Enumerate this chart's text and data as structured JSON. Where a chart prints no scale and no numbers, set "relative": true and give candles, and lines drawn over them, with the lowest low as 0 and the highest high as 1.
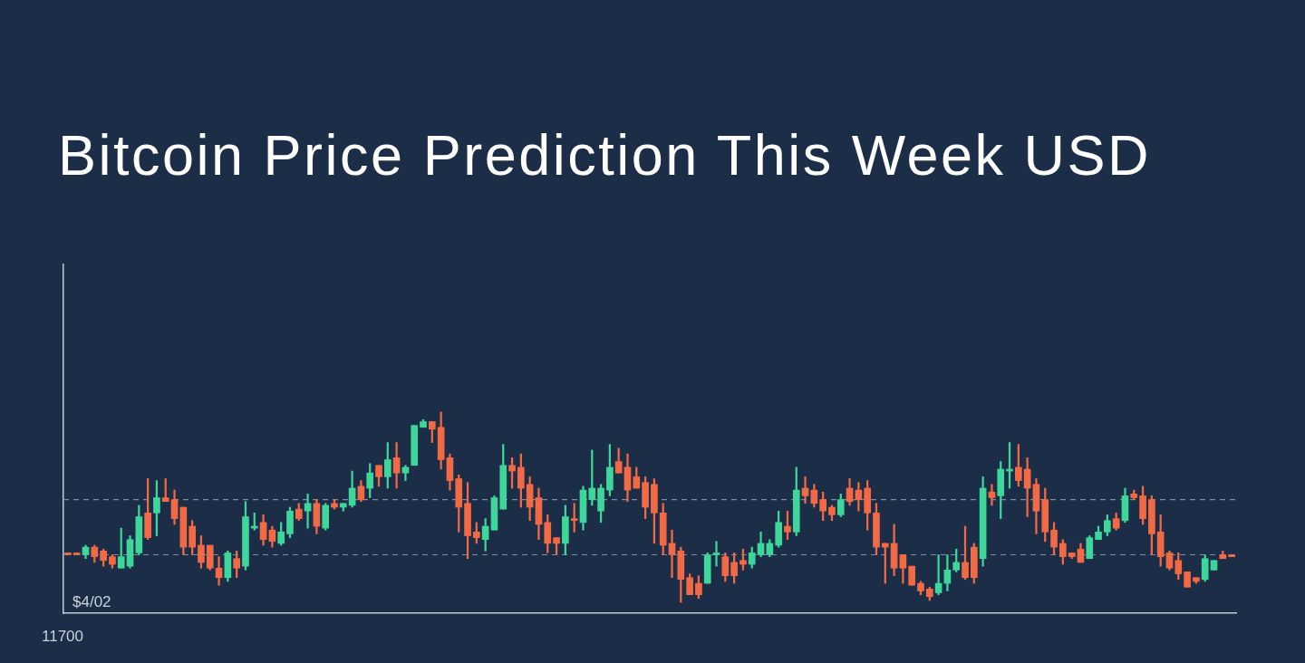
{
  "chart_data": {
    "type": "candlestick",
    "title": "Bitcoin Price Prediction This Week USD",
    "relative": true,
    "tick_labels": false,
    "categories": [
      null,
      null,
      null,
      null,
      null,
      null,
      null,
      null,
      null,
      null,
      null,
      null,
      null,
      null,
      null,
      null,
      null,
      null,
      null,
      null,
      null,
      null,
      null,
      null,
      null,
      null,
      null,
      null,
      null,
      null,
      null,
      null,
      null,
      null,
      null,
      null,
      null,
      null,
      null,
      null,
      null,
      null,
      null,
      null,
      null,
      null,
      null,
      null,
      null,
      null,
      null,
      null,
      null,
      null,
      null,
      null,
      null,
      null,
      null,
      null,
      null,
      null,
      null,
      null,
      null,
      null,
      null,
      null,
      null,
      null,
      null,
      null,
      null,
      null,
      null,
      null,
      null,
      null,
      null,
      null,
      null,
      null,
      null,
      null,
      null,
      null,
      null,
      null,
      null,
      null,
      null,
      null,
      null,
      null,
      null,
      null,
      null,
      null,
      null,
      null,
      null,
      null,
      null,
      null,
      null,
      null,
      null,
      null,
      null,
      null,
      null,
      null,
      null,
      null,
      null,
      null,
      null,
      null,
      null,
      null,
      null,
      null,
      null,
      null,
      null,
      null,
      null,
      null,
      null,
      null,
      null,
      null
    ],
    "ohlc": [
      [
        0.26,
        0.26,
        0.25,
        0.25
      ],
      [
        0.26,
        0.26,
        0.25,
        0.25
      ],
      [
        0.25,
        0.3,
        0.23,
        0.29
      ],
      [
        0.29,
        0.3,
        0.21,
        0.24
      ],
      [
        0.27,
        0.28,
        0.19,
        0.22
      ],
      [
        0.24,
        0.25,
        0.18,
        0.2
      ],
      [
        0.18,
        0.39,
        0.18,
        0.24
      ],
      [
        0.19,
        0.35,
        0.18,
        0.33
      ],
      [
        0.26,
        0.51,
        0.25,
        0.45
      ],
      [
        0.47,
        0.65,
        0.33,
        0.34
      ],
      [
        0.47,
        0.64,
        0.35,
        0.55
      ],
      [
        0.55,
        0.65,
        0.53,
        0.53
      ],
      [
        0.54,
        0.59,
        0.41,
        0.44
      ],
      [
        0.5,
        0.5,
        0.25,
        0.29
      ],
      [
        0.4,
        0.43,
        0.25,
        0.29
      ],
      [
        0.3,
        0.35,
        0.18,
        0.21
      ],
      [
        0.3,
        0.3,
        0.17,
        0.18
      ],
      [
        0.18,
        0.24,
        0.09,
        0.13
      ],
      [
        0.13,
        0.27,
        0.11,
        0.26
      ],
      [
        0.23,
        0.27,
        0.13,
        0.18
      ],
      [
        0.19,
        0.53,
        0.17,
        0.45
      ],
      [
        0.39,
        0.47,
        0.38,
        0.4
      ],
      [
        0.42,
        0.46,
        0.3,
        0.33
      ],
      [
        0.38,
        0.4,
        0.29,
        0.32
      ],
      [
        0.31,
        0.42,
        0.3,
        0.37
      ],
      [
        0.36,
        0.5,
        0.34,
        0.48
      ],
      [
        0.49,
        0.52,
        0.43,
        0.44
      ],
      [
        0.48,
        0.57,
        0.39,
        0.52
      ],
      [
        0.52,
        0.54,
        0.36,
        0.4
      ],
      [
        0.39,
        0.52,
        0.38,
        0.51
      ],
      [
        0.52,
        0.54,
        0.49,
        0.5
      ],
      [
        0.5,
        0.52,
        0.48,
        0.52
      ],
      [
        0.51,
        0.69,
        0.5,
        0.6
      ],
      [
        0.61,
        0.64,
        0.53,
        0.54
      ],
      [
        0.6,
        0.73,
        0.55,
        0.68
      ],
      [
        0.72,
        0.72,
        0.61,
        0.66
      ],
      [
        0.66,
        0.84,
        0.6,
        0.75
      ],
      [
        0.76,
        0.84,
        0.6,
        0.68
      ],
      [
        0.68,
        0.72,
        0.64,
        0.71
      ],
      [
        0.72,
        0.93,
        0.72,
        0.93
      ],
      [
        0.92,
        0.96,
        0.92,
        0.95
      ],
      [
        0.95,
        0.95,
        0.84,
        0.91
      ],
      [
        0.92,
        1,
        0.7,
        0.75
      ],
      [
        0.76,
        0.78,
        0.59,
        0.64
      ],
      [
        0.65,
        0.67,
        0.37,
        0.5
      ],
      [
        0.52,
        0.63,
        0.23,
        0.35
      ],
      [
        0.37,
        0.42,
        0.31,
        0.34
      ],
      [
        0.33,
        0.44,
        0.27,
        0.4
      ],
      [
        0.38,
        0.56,
        0.38,
        0.55
      ],
      [
        0.49,
        0.83,
        0.49,
        0.72
      ],
      [
        0.72,
        0.76,
        0.6,
        0.69
      ],
      [
        0.71,
        0.78,
        0.5,
        0.6
      ],
      [
        0.62,
        0.66,
        0.43,
        0.5
      ],
      [
        0.55,
        0.6,
        0.33,
        0.41
      ],
      [
        0.42,
        0.46,
        0.26,
        0.31
      ],
      [
        0.34,
        0.34,
        0.25,
        0.31
      ],
      [
        0.31,
        0.51,
        0.25,
        0.45
      ],
      [
        0.44,
        0.52,
        0.37,
        0.43
      ],
      [
        0.42,
        0.61,
        0.38,
        0.59
      ],
      [
        0.54,
        0.8,
        0.51,
        0.6
      ],
      [
        0.48,
        0.62,
        0.42,
        0.6
      ],
      [
        0.59,
        0.83,
        0.56,
        0.71
      ],
      [
        0.74,
        0.81,
        0.68,
        0.68
      ],
      [
        0.71,
        0.78,
        0.53,
        0.59
      ],
      [
        0.66,
        0.71,
        0.6,
        0.6
      ],
      [
        0.63,
        0.66,
        0.44,
        0.5
      ],
      [
        0.62,
        0.65,
        0.31,
        0.47
      ],
      [
        0.47,
        0.52,
        0.25,
        0.3
      ],
      [
        0.31,
        0.38,
        0.13,
        0.25
      ],
      [
        0.27,
        0.29,
        0,
        0.12
      ],
      [
        0.13,
        0.15,
        0.04,
        0.04
      ],
      [
        0.1,
        0.14,
        0.02,
        0.04
      ],
      [
        0.1,
        0.26,
        0.1,
        0.25
      ],
      [
        0.25,
        0.32,
        0.19,
        0.26
      ],
      [
        0.24,
        0.26,
        0.11,
        0.14
      ],
      [
        0.21,
        0.26,
        0.1,
        0.14
      ],
      [
        0.22,
        0.28,
        0.17,
        0.2
      ],
      [
        0.2,
        0.29,
        0.18,
        0.26
      ],
      [
        0.25,
        0.37,
        0.24,
        0.31
      ],
      [
        0.25,
        0.33,
        0.24,
        0.31
      ],
      [
        0.3,
        0.48,
        0.29,
        0.42
      ],
      [
        0.4,
        0.48,
        0.33,
        0.37
      ],
      [
        0.37,
        0.71,
        0.35,
        0.59
      ],
      [
        0.6,
        0.66,
        0.52,
        0.56
      ],
      [
        0.59,
        0.62,
        0.5,
        0.52
      ],
      [
        0.54,
        0.58,
        0.43,
        0.48
      ],
      [
        0.5,
        0.51,
        0.43,
        0.46
      ],
      [
        0.46,
        0.57,
        0.45,
        0.54
      ],
      [
        0.6,
        0.65,
        0.51,
        0.53
      ],
      [
        0.59,
        0.63,
        0.48,
        0.54
      ],
      [
        0.6,
        0.64,
        0.38,
        0.47
      ],
      [
        0.47,
        0.52,
        0.25,
        0.29
      ],
      [
        0.31,
        0.31,
        0.1,
        0.29
      ],
      [
        0.31,
        0.41,
        0.14,
        0.18
      ],
      [
        0.25,
        0.25,
        0.1,
        0.18
      ],
      [
        0.19,
        0.19,
        0.09,
        0.09
      ],
      [
        0.1,
        0.11,
        0.04,
        0.06
      ],
      [
        0.07,
        0.08,
        0.01,
        0.03
      ],
      [
        0.05,
        0.25,
        0.04,
        0.1
      ],
      [
        0.1,
        0.25,
        0.06,
        0.17
      ],
      [
        0.17,
        0.28,
        0.16,
        0.21
      ],
      [
        0.21,
        0.4,
        0.12,
        0.13
      ],
      [
        0.29,
        0.31,
        0.1,
        0.13
      ],
      [
        0.23,
        0.66,
        0.19,
        0.6
      ],
      [
        0.58,
        0.62,
        0.51,
        0.55
      ],
      [
        0.56,
        0.74,
        0.44,
        0.7
      ],
      [
        0.69,
        0.84,
        0.6,
        0.7
      ],
      [
        0.71,
        0.83,
        0.61,
        0.64
      ],
      [
        0.7,
        0.76,
        0.45,
        0.6
      ],
      [
        0.62,
        0.65,
        0.36,
        0.48
      ],
      [
        0.54,
        0.6,
        0.32,
        0.37
      ],
      [
        0.38,
        0.42,
        0.25,
        0.29
      ],
      [
        0.31,
        0.33,
        0.2,
        0.24
      ],
      [
        0.26,
        0.26,
        0.23,
        0.24
      ],
      [
        0.28,
        0.31,
        0.21,
        0.21
      ],
      [
        0.23,
        0.35,
        0.23,
        0.34
      ],
      [
        0.33,
        0.4,
        0.33,
        0.37
      ],
      [
        0.37,
        0.46,
        0.35,
        0.43
      ],
      [
        0.44,
        0.47,
        0.38,
        0.39
      ],
      [
        0.43,
        0.6,
        0.42,
        0.56
      ],
      [
        0.57,
        0.59,
        0.54,
        0.55
      ],
      [
        0.56,
        0.61,
        0.41,
        0.44
      ],
      [
        0.54,
        0.56,
        0.25,
        0.36
      ],
      [
        0.37,
        0.46,
        0.19,
        0.24
      ],
      [
        0.26,
        0.27,
        0.17,
        0.18
      ],
      [
        0.22,
        0.26,
        0.12,
        0.15
      ],
      [
        0.16,
        0.16,
        0.08,
        0.08
      ],
      [
        0.13,
        0.13,
        0.1,
        0.11
      ],
      [
        0.12,
        0.25,
        0.11,
        0.23
      ],
      [
        0.17,
        0.22,
        0.17,
        0.22
      ],
      [
        0.25,
        0.27,
        0.23,
        0.23
      ],
      [
        0.25,
        0.25,
        0.24,
        0.24
      ]
    ],
    "colors": [
      "#f26a45",
      "#f26a45",
      "#3ed69b",
      "#f26a45",
      "#f26a45",
      "#f26a45",
      "#3ed69b",
      "#3ed69b",
      "#3ed69b",
      "#f26a45",
      "#3ed69b",
      "#f26a45",
      "#f26a45",
      "#f26a45",
      "#f26a45",
      "#f26a45",
      "#f26a45",
      "#f26a45",
      "#3ed69b",
      "#f26a45",
      "#3ed69b",
      "#3ed69b",
      "#f26a45",
      "#f26a45",
      "#3ed69b",
      "#3ed69b",
      "#f26a45",
      "#3ed69b",
      "#f26a45",
      "#3ed69b",
      "#f26a45",
      "#3ed69b",
      "#3ed69b",
      "#f26a45",
      "#3ed69b",
      "#f26a45",
      "#3ed69b",
      "#f26a45",
      "#3ed69b",
      "#3ed69b",
      "#3ed69b",
      "#f26a45",
      "#f26a45",
      "#f26a45",
      "#f26a45",
      "#f26a45",
      "#f26a45",
      "#3ed69b",
      "#3ed69b",
      "#3ed69b",
      "#f26a45",
      "#f26a45",
      "#f26a45",
      "#f26a45",
      "#f26a45",
      "#f26a45",
      "#3ed69b",
      "#f26a45",
      "#3ed69b",
      "#3ed69b",
      "#3ed69b",
      "#3ed69b",
      "#f26a45",
      "#f26a45",
      "#f26a45",
      "#f26a45",
      "#f26a45",
      "#f26a45",
      "#f26a45",
      "#f26a45",
      "#f26a45",
      "#f26a45",
      "#3ed69b",
      "#3ed69b",
      "#f26a45",
      "#f26a45",
      "#f26a45",
      "#3ed69b",
      "#3ed69b",
      "#3ed69b",
      "#3ed69b",
      "#f26a45",
      "#3ed69b",
      "#f26a45",
      "#f26a45",
      "#f26a45",
      "#f26a45",
      "#3ed69b",
      "#f26a45",
      "#f26a45",
      "#f26a45",
      "#f26a45",
      "#f26a45",
      "#f26a45",
      "#f26a45",
      "#f26a45",
      "#f26a45",
      "#f26a45",
      "#3ed69b",
      "#3ed69b",
      "#3ed69b",
      "#f26a45",
      "#f26a45",
      "#3ed69b",
      "#f26a45",
      "#3ed69b",
      "#3ed69b",
      "#f26a45",
      "#f26a45",
      "#f26a45",
      "#f26a45",
      "#f26a45",
      "#f26a45",
      "#f26a45",
      "#f26a45",
      "#3ed69b",
      "#3ed69b",
      "#3ed69b",
      "#f26a45",
      "#3ed69b",
      "#f26a45",
      "#f26a45",
      "#f26a45",
      "#f26a45",
      "#f26a45",
      "#f26a45",
      "#f26a45",
      "#f26a45",
      "#3ed69b",
      "#3ed69b",
      "#f26a45",
      "#f26a45"
    ],
    "ref_lines": [
      {
        "axis": "y",
        "value": 0.54,
        "color": "#7f8da2",
        "line_style": "dashed"
      },
      {
        "axis": "y",
        "value": 0.25,
        "color": "#7f8da2",
        "line_style": "dashed"
      }
    ],
    "annotations": [
      "$4/02",
      "11700"
    ]
  }
}
